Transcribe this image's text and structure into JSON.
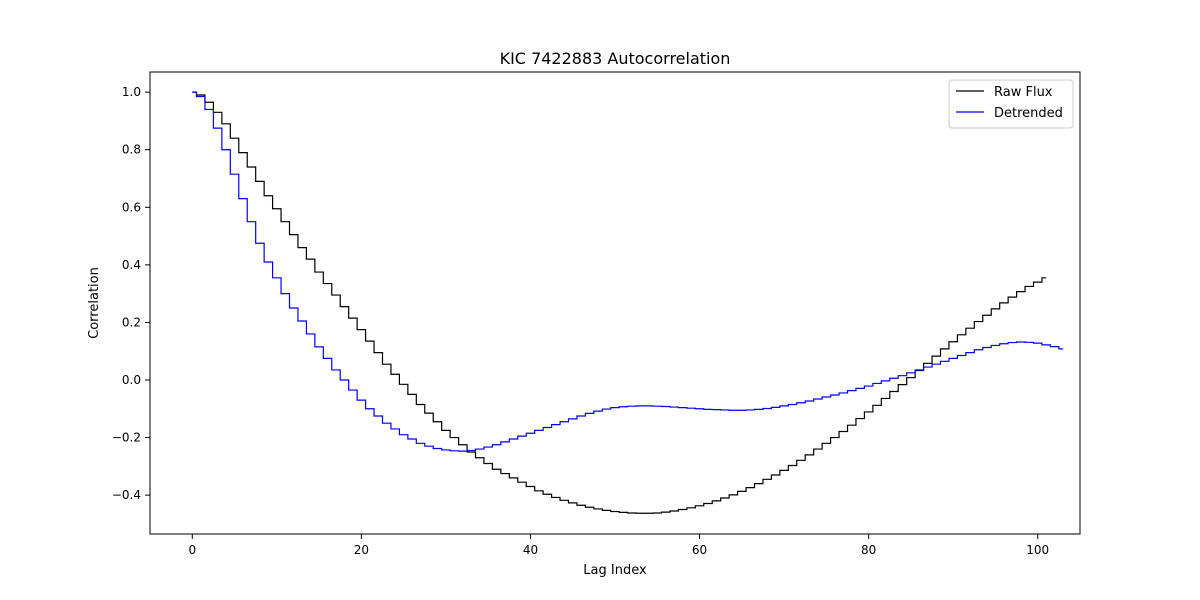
{
  "chart_data": {
    "type": "line",
    "drawstyle": "steps-mid",
    "title": "KIC 7422883 Autocorrelation",
    "xlabel": "Lag Index",
    "ylabel": "Correlation",
    "xlim": [
      -5,
      105
    ],
    "ylim": [
      -0.535,
      1.07
    ],
    "xticks": [
      0,
      20,
      40,
      60,
      80,
      100
    ],
    "xtick_labels": [
      "0",
      "20",
      "40",
      "60",
      "80",
      "100"
    ],
    "yticks": [
      -0.4,
      -0.2,
      0.0,
      0.2,
      0.4,
      0.6,
      0.8,
      1.0
    ],
    "ytick_labels": [
      "−0.4",
      "−0.2",
      "0.0",
      "0.2",
      "0.4",
      "0.6",
      "0.8",
      "1.0"
    ],
    "grid": false,
    "legend_position": "top-right",
    "x_start": 0,
    "x_step": 1,
    "series": [
      {
        "name": "Raw Flux",
        "color": "#000000",
        "values": [
          1.0,
          0.99,
          0.965,
          0.93,
          0.89,
          0.84,
          0.79,
          0.74,
          0.69,
          0.64,
          0.595,
          0.55,
          0.505,
          0.46,
          0.42,
          0.375,
          0.335,
          0.295,
          0.255,
          0.215,
          0.175,
          0.135,
          0.095,
          0.055,
          0.02,
          -0.015,
          -0.05,
          -0.085,
          -0.115,
          -0.145,
          -0.175,
          -0.2,
          -0.225,
          -0.25,
          -0.27,
          -0.29,
          -0.31,
          -0.325,
          -0.34,
          -0.355,
          -0.37,
          -0.385,
          -0.397,
          -0.408,
          -0.418,
          -0.427,
          -0.435,
          -0.442,
          -0.448,
          -0.453,
          -0.457,
          -0.46,
          -0.462,
          -0.463,
          -0.463,
          -0.462,
          -0.459,
          -0.455,
          -0.45,
          -0.444,
          -0.437,
          -0.429,
          -0.42,
          -0.41,
          -0.399,
          -0.387,
          -0.374,
          -0.36,
          -0.345,
          -0.33,
          -0.314,
          -0.297,
          -0.279,
          -0.26,
          -0.24,
          -0.22,
          -0.2,
          -0.179,
          -0.157,
          -0.134,
          -0.111,
          -0.088,
          -0.064,
          -0.04,
          -0.016,
          0.008,
          0.033,
          0.058,
          0.083,
          0.108,
          0.133,
          0.157,
          0.18,
          0.203,
          0.225,
          0.247,
          0.268,
          0.288,
          0.307,
          0.325,
          0.34,
          0.355
        ]
      },
      {
        "name": "Detrended",
        "color": "#0000ff",
        "values": [
          1.0,
          0.985,
          0.94,
          0.875,
          0.8,
          0.715,
          0.63,
          0.55,
          0.475,
          0.41,
          0.355,
          0.3,
          0.25,
          0.205,
          0.16,
          0.115,
          0.075,
          0.035,
          0.0,
          -0.035,
          -0.07,
          -0.1,
          -0.125,
          -0.15,
          -0.17,
          -0.19,
          -0.205,
          -0.22,
          -0.23,
          -0.238,
          -0.243,
          -0.246,
          -0.247,
          -0.245,
          -0.24,
          -0.233,
          -0.225,
          -0.215,
          -0.205,
          -0.195,
          -0.185,
          -0.175,
          -0.165,
          -0.155,
          -0.145,
          -0.135,
          -0.125,
          -0.116,
          -0.108,
          -0.101,
          -0.096,
          -0.093,
          -0.091,
          -0.09,
          -0.09,
          -0.091,
          -0.092,
          -0.094,
          -0.096,
          -0.098,
          -0.1,
          -0.102,
          -0.103,
          -0.104,
          -0.105,
          -0.105,
          -0.104,
          -0.102,
          -0.099,
          -0.095,
          -0.09,
          -0.085,
          -0.079,
          -0.073,
          -0.066,
          -0.059,
          -0.052,
          -0.045,
          -0.037,
          -0.029,
          -0.021,
          -0.012,
          -0.003,
          0.006,
          0.015,
          0.025,
          0.035,
          0.045,
          0.055,
          0.065,
          0.075,
          0.085,
          0.095,
          0.105,
          0.113,
          0.12,
          0.126,
          0.13,
          0.132,
          0.131,
          0.128,
          0.122,
          0.116,
          0.108
        ]
      }
    ]
  }
}
